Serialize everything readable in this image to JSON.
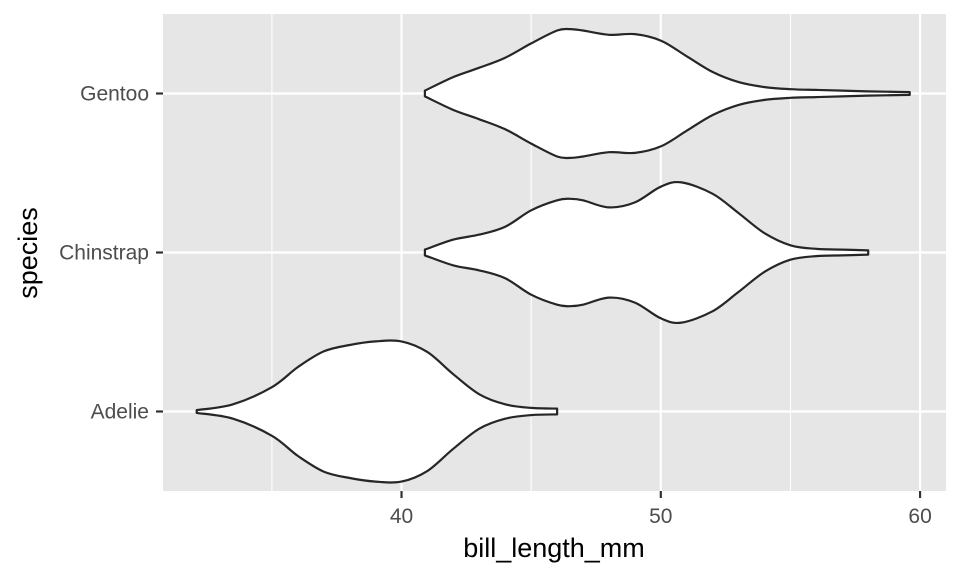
{
  "chart_data": {
    "type": "violin",
    "orientation": "horizontal",
    "xlabel": "bill_length_mm",
    "ylabel": "species",
    "xlim": [
      30.8,
      61.0
    ],
    "x_major_ticks": [
      40,
      50,
      60
    ],
    "x_minor_ticks": [
      35,
      45,
      55
    ],
    "categories": [
      "Adelie",
      "Chinstrap",
      "Gentoo"
    ],
    "grid": true,
    "panel_background": "#e6e6e6",
    "grid_color": "#ffffff",
    "violin_fill": "#ffffff",
    "violin_stroke": "#262626",
    "series": [
      {
        "name": "Adelie",
        "x": [
          32.1,
          33.5,
          35.0,
          36.0,
          37.0,
          38.0,
          39.0,
          40.0,
          41.0,
          42.0,
          43.0,
          44.0,
          45.0,
          46.0
        ],
        "half_width": [
          0.02,
          0.1,
          0.34,
          0.62,
          0.84,
          0.93,
          0.98,
          0.98,
          0.83,
          0.52,
          0.24,
          0.1,
          0.05,
          0.04
        ]
      },
      {
        "name": "Chinstrap",
        "x": [
          40.9,
          42.0,
          43.0,
          44.0,
          45.0,
          46.0,
          46.5,
          47.0,
          48.0,
          49.0,
          50.0,
          50.8,
          52.0,
          53.0,
          54.0,
          55.0,
          56.0,
          57.0,
          58.0
        ],
        "half_width": [
          0.04,
          0.18,
          0.25,
          0.36,
          0.59,
          0.73,
          0.75,
          0.73,
          0.63,
          0.7,
          0.92,
          0.98,
          0.82,
          0.55,
          0.27,
          0.1,
          0.05,
          0.04,
          0.03
        ]
      },
      {
        "name": "Gentoo",
        "x": [
          40.9,
          42.0,
          43.0,
          44.0,
          45.0,
          46.0,
          46.5,
          47.0,
          48.0,
          49.0,
          50.0,
          51.0,
          52.0,
          53.0,
          54.0,
          55.0,
          56.0,
          57.0,
          58.0,
          59.6
        ],
        "half_width": [
          0.04,
          0.23,
          0.36,
          0.5,
          0.7,
          0.88,
          0.9,
          0.88,
          0.82,
          0.83,
          0.74,
          0.52,
          0.3,
          0.16,
          0.09,
          0.06,
          0.05,
          0.04,
          0.03,
          0.02
        ]
      }
    ]
  }
}
